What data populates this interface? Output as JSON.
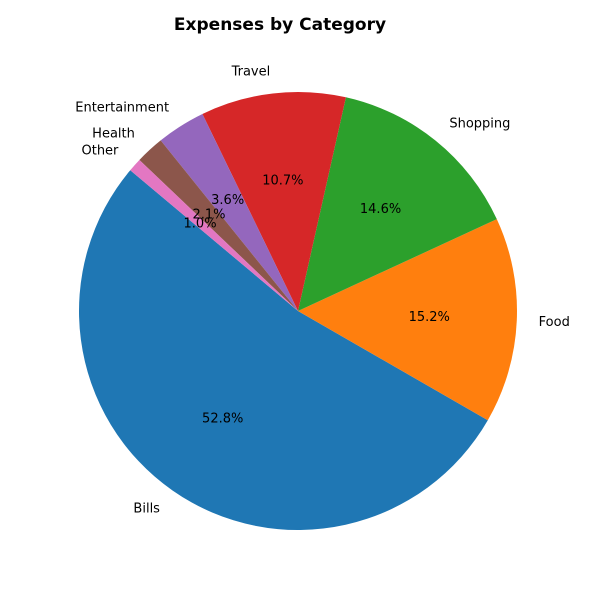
{
  "chart_data": {
    "type": "pie",
    "title": "Expenses by Category",
    "start_angle_deg": 140,
    "direction": "counterclockwise",
    "slices": [
      {
        "label": "Bills",
        "value": 52.8,
        "pct_label": "52.8%",
        "color": "#1f77b4"
      },
      {
        "label": "Food",
        "value": 15.2,
        "pct_label": "15.2%",
        "color": "#ff7f0e"
      },
      {
        "label": "Shopping",
        "value": 14.6,
        "pct_label": "14.6%",
        "color": "#2ca02c"
      },
      {
        "label": "Travel",
        "value": 10.7,
        "pct_label": "10.7%",
        "color": "#d62728"
      },
      {
        "label": "Entertainment",
        "value": 3.6,
        "pct_label": "3.6%",
        "color": "#9467bd"
      },
      {
        "label": "Health",
        "value": 2.1,
        "pct_label": "2.1%",
        "color": "#8c564b"
      },
      {
        "label": "Other",
        "value": 1.0,
        "pct_label": "1.0%",
        "color": "#e377c2"
      }
    ]
  }
}
